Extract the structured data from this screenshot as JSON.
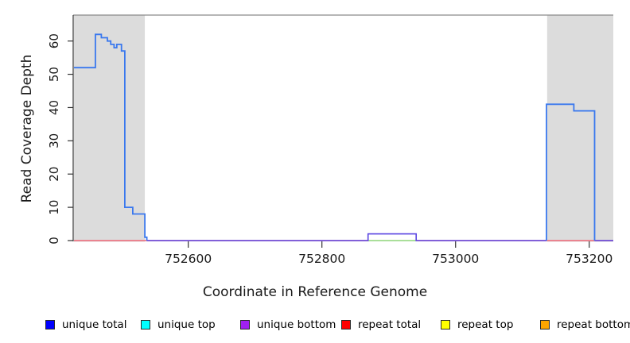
{
  "chart_data": {
    "type": "line",
    "title": "",
    "xlabel": "Coordinate in Reference Genome",
    "ylabel": "Read Coverage Depth",
    "xlim": [
      752429,
      753236
    ],
    "ylim": [
      0,
      67.8
    ],
    "x_ticks": [
      "752600",
      "752800",
      "753000",
      "753200"
    ],
    "x_tick_values": [
      752600,
      752800,
      753000,
      753200
    ],
    "y_ticks": [
      "0",
      "10",
      "20",
      "30",
      "40",
      "50",
      "60"
    ],
    "y_tick_values": [
      0,
      10,
      20,
      30,
      40,
      50,
      60
    ],
    "grid": false,
    "legend_position": "bottom",
    "shaded_regions": [
      {
        "name": "left-repeat-region",
        "x0": 752429,
        "x1": 752535,
        "color": "#dcdcdc"
      },
      {
        "name": "right-repeat-region",
        "x0": 753137,
        "x1": 753236,
        "color": "#dcdcdc"
      }
    ],
    "series": [
      {
        "name": "repeat-total-baseline",
        "legend": "repeat total",
        "color": "#ee6677",
        "width": 1.4,
        "points": [
          [
            752429,
            0
          ],
          [
            753236,
            0
          ]
        ]
      },
      {
        "name": "unique-top-repeat-top-overlap-baseline",
        "legend": "unique top / repeat top",
        "color": "#90ee90",
        "width": 1.6,
        "points": [
          [
            752869,
            0
          ],
          [
            752941,
            0
          ]
        ]
      },
      {
        "name": "unique-bottom-baseline-and-bump",
        "legend": "unique bottom",
        "color": "#5a45e2",
        "width": 1.6,
        "points": [
          [
            752538,
            0
          ],
          [
            752869,
            0
          ],
          [
            752869,
            2
          ],
          [
            752941,
            2
          ],
          [
            752941,
            0
          ],
          [
            753136,
            0
          ]
        ]
      },
      {
        "name": "unique-bottom-right-baseline",
        "legend": "unique bottom",
        "color": "#5a45e2",
        "width": 1.6,
        "points": [
          [
            753208,
            0
          ],
          [
            753236,
            0
          ]
        ]
      },
      {
        "name": "unique-total-left-block",
        "legend": "unique total",
        "color": "#3a78ee",
        "width": 1.8,
        "points": [
          [
            752429,
            52
          ],
          [
            752461,
            52
          ],
          [
            752461,
            62
          ],
          [
            752470,
            62
          ],
          [
            752470,
            61
          ],
          [
            752479,
            61
          ],
          [
            752479,
            60
          ],
          [
            752484,
            60
          ],
          [
            752484,
            59
          ],
          [
            752489,
            59
          ],
          [
            752489,
            58
          ],
          [
            752493,
            58
          ],
          [
            752493,
            59
          ],
          [
            752500,
            59
          ],
          [
            752500,
            57
          ],
          [
            752505,
            57
          ],
          [
            752505,
            10
          ],
          [
            752517,
            10
          ],
          [
            752517,
            8
          ],
          [
            752535,
            8
          ],
          [
            752535,
            1
          ],
          [
            752538,
            1
          ],
          [
            752538,
            0
          ]
        ]
      },
      {
        "name": "unique-total-right-block",
        "legend": "unique total",
        "color": "#3a78ee",
        "width": 1.8,
        "points": [
          [
            753136,
            0
          ],
          [
            753136,
            41
          ],
          [
            753177,
            41
          ],
          [
            753177,
            39
          ],
          [
            753208,
            39
          ],
          [
            753208,
            0
          ]
        ]
      }
    ],
    "legend": [
      {
        "label": "unique total",
        "color": "#0000ff"
      },
      {
        "label": "unique top",
        "color": "#00ffff"
      },
      {
        "label": "unique bottom",
        "color": "#a020f0"
      },
      {
        "label": "repeat total",
        "color": "#ff0000"
      },
      {
        "label": "repeat top",
        "color": "#ffff00"
      },
      {
        "label": "repeat bottom",
        "color": "#ffa500"
      }
    ],
    "frame": {
      "top_border_color": "#8a8a8a",
      "axis_line_color": "#333333"
    }
  }
}
